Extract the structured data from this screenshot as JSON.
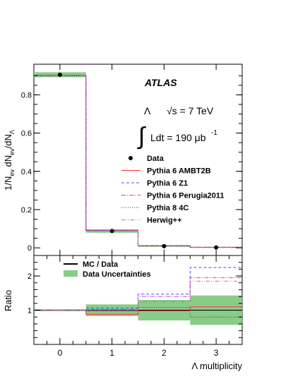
{
  "chart_data": [
    {
      "type": "histogram",
      "title": "",
      "xlabel": "Λ  multiplicity",
      "ylabel": "1/N_ev dN_ev/dN_Λ",
      "xlim": [
        -0.5,
        3.5
      ],
      "ylim": [
        -0.04,
        0.96
      ],
      "x_ticks": [
        "0",
        "1",
        "2",
        "3"
      ],
      "y_ticks": [
        "0",
        "0.2",
        "0.4",
        "0.6",
        "0.8"
      ],
      "bins": [
        0,
        1,
        2,
        3
      ],
      "grid": false,
      "legend_position": "right",
      "annotations": {
        "experiment": "ATLAS",
        "energy_symbol": "Λ",
        "energy_text": "√s = 7 TeV",
        "lumi_text": "Ldt = 190 μb",
        "lumi_exp": "-1"
      },
      "series": [
        {
          "name": "Data",
          "kind": "points",
          "color": "#000000",
          "values": [
            0.905,
            0.088,
            0.009,
            0.002
          ],
          "band": [
            0.013,
            0.009,
            0.004,
            0.002
          ]
        },
        {
          "name": "Pythia 6 AMBT2B",
          "kind": "step",
          "style": "solid",
          "color": "#ff3333",
          "values": [
            0.902,
            0.09,
            0.011,
            0.003
          ]
        },
        {
          "name": "Pythia 6 Z1",
          "kind": "step",
          "style": "dashed",
          "color": "#4444ff",
          "values": [
            0.901,
            0.091,
            0.012,
            0.003
          ]
        },
        {
          "name": "Pythia 6 Perugia2011",
          "kind": "step",
          "style": "dashdot",
          "color": "#cc44cc",
          "values": [
            0.902,
            0.09,
            0.011,
            0.003
          ]
        },
        {
          "name": "Pythia 8 4C",
          "kind": "step",
          "style": "dotted",
          "color": "#333333",
          "values": [
            0.9,
            0.092,
            0.011,
            0.003
          ]
        },
        {
          "name": "Herwig++",
          "kind": "step",
          "style": "dashdotdot",
          "color": "#dd55aa",
          "values": [
            0.902,
            0.09,
            0.01,
            0.002
          ]
        }
      ]
    },
    {
      "type": "histogram",
      "title": "",
      "xlabel": "Λ  multiplicity",
      "ylabel": "Ratio",
      "xlim": [
        -0.5,
        3.5
      ],
      "ylim": [
        0,
        2.6
      ],
      "y_ticks": [
        "1",
        "2"
      ],
      "bins": [
        0,
        1,
        2,
        3
      ],
      "grid": false,
      "legend_position": "top-left",
      "legend": [
        {
          "name": "MC / Data",
          "kind": "line",
          "color": "#000000"
        },
        {
          "name": "Data Uncertainties",
          "kind": "band",
          "color": "#88cc88"
        }
      ],
      "band": {
        "lower": [
          0.97,
          0.83,
          0.7,
          0.57
        ],
        "upper": [
          1.03,
          1.17,
          1.3,
          1.43
        ]
      },
      "series": [
        {
          "name": "Pythia 6 AMBT2B",
          "style": "solid",
          "color": "#ff3333",
          "values": [
            1.0,
            0.88,
            0.98,
            1.1
          ]
        },
        {
          "name": "Pythia 6 Z1",
          "style": "dashed",
          "color": "#4444ff",
          "values": [
            1.0,
            1.06,
            1.47,
            2.25
          ]
        },
        {
          "name": "Pythia 6 Perugia2011",
          "style": "dashdot",
          "color": "#cc44cc",
          "values": [
            1.0,
            1.02,
            1.4,
            1.95
          ]
        },
        {
          "name": "Pythia 8 4C",
          "style": "dotted",
          "color": "#333333",
          "values": [
            1.0,
            0.97,
            1.08,
            0.8
          ]
        },
        {
          "name": "Herwig++",
          "style": "dashdotdot",
          "color": "#dd55aa",
          "values": [
            1.0,
            0.99,
            1.25,
            1.85
          ]
        }
      ]
    }
  ]
}
